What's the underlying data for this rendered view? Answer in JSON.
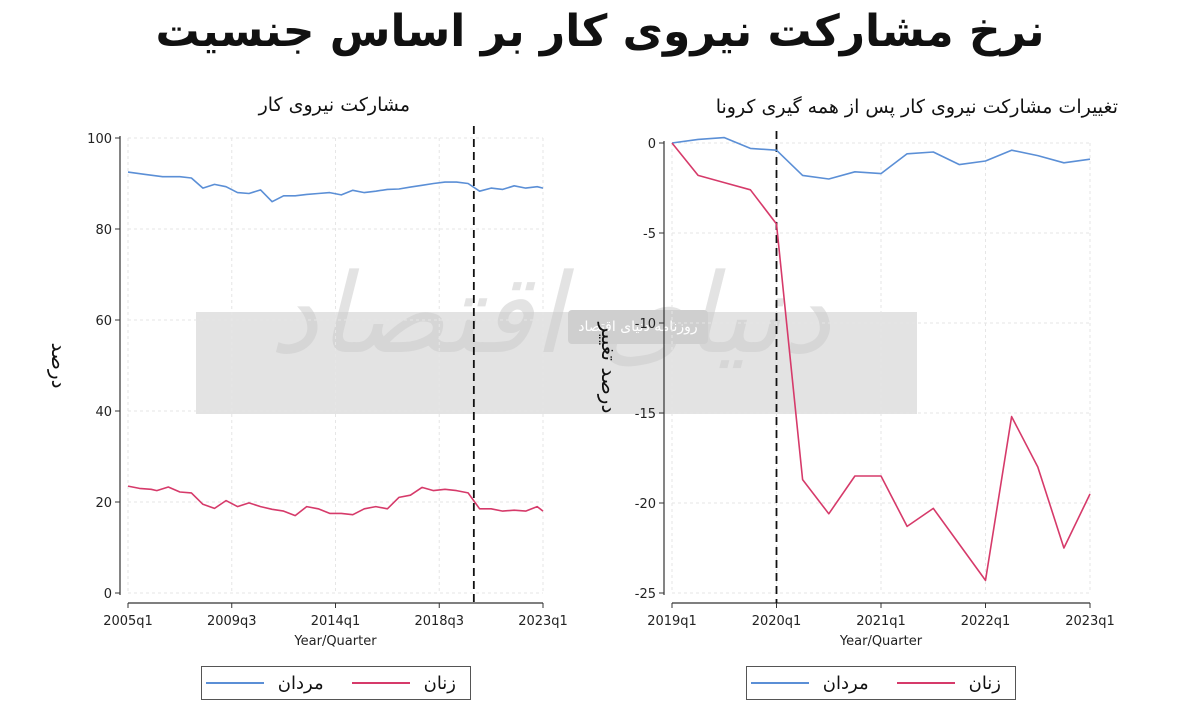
{
  "title": "نرخ مشارکت نیروی کار بر اساس جنسیت",
  "watermark": {
    "text": "دنیای اقتصاد",
    "badge": "روزنامه دنیای اقتصاد"
  },
  "colors": {
    "men": "#5b8fd6",
    "women": "#d63a6a",
    "grid": "#e6e6e6"
  },
  "legend": {
    "men_label": "مردان",
    "women_label": "زنان"
  },
  "chart_data": [
    {
      "type": "line",
      "title": "مشارکت نیروی کار",
      "xlabel": "Year/Quarter",
      "ylabel": "درصد",
      "ylim": [
        0,
        100
      ],
      "yticks": [
        0,
        20,
        40,
        60,
        80,
        100
      ],
      "x_range": [
        "2005q1",
        "2023q1"
      ],
      "xticks": [
        "2005q1",
        "2009q3",
        "2014q1",
        "2018q3",
        "2023q1"
      ],
      "vline_at": "2020q1",
      "series": [
        {
          "name": "مردان",
          "points": [
            [
              "2005q1",
              92.5
            ],
            [
              "2005q4",
              92.0
            ],
            [
              "2006q3",
              91.5
            ],
            [
              "2007q2",
              91.5
            ],
            [
              "2007q4",
              91.2
            ],
            [
              "2008q2",
              89.0
            ],
            [
              "2008q4",
              89.8
            ],
            [
              "2009q2",
              89.3
            ],
            [
              "2009q4",
              88.0
            ],
            [
              "2010q2",
              87.8
            ],
            [
              "2010q4",
              88.6
            ],
            [
              "2011q2",
              86.0
            ],
            [
              "2011q4",
              87.3
            ],
            [
              "2012q2",
              87.3
            ],
            [
              "2012q4",
              87.6
            ],
            [
              "2013q2",
              87.8
            ],
            [
              "2013q4",
              88.0
            ],
            [
              "2014q2",
              87.5
            ],
            [
              "2014q4",
              88.5
            ],
            [
              "2015q2",
              88.0
            ],
            [
              "2015q4",
              88.3
            ],
            [
              "2016q2",
              88.7
            ],
            [
              "2016q4",
              88.8
            ],
            [
              "2017q2",
              89.2
            ],
            [
              "2017q4",
              89.6
            ],
            [
              "2018q2",
              90.0
            ],
            [
              "2018q4",
              90.3
            ],
            [
              "2019q2",
              90.3
            ],
            [
              "2019q4",
              90.0
            ],
            [
              "2020q2",
              88.3
            ],
            [
              "2020q4",
              89.0
            ],
            [
              "2021q2",
              88.7
            ],
            [
              "2021q4",
              89.5
            ],
            [
              "2022q2",
              89.0
            ],
            [
              "2022q4",
              89.3
            ],
            [
              "2023q1",
              89.0
            ]
          ]
        },
        {
          "name": "زنان",
          "points": [
            [
              "2005q1",
              23.5
            ],
            [
              "2005q3",
              23.0
            ],
            [
              "2006q1",
              22.8
            ],
            [
              "2006q2",
              22.5
            ],
            [
              "2006q4",
              23.3
            ],
            [
              "2007q2",
              22.2
            ],
            [
              "2007q4",
              22.0
            ],
            [
              "2008q2",
              19.5
            ],
            [
              "2008q4",
              18.6
            ],
            [
              "2009q2",
              20.3
            ],
            [
              "2009q4",
              19.0
            ],
            [
              "2010q2",
              19.8
            ],
            [
              "2010q4",
              19.0
            ],
            [
              "2011q2",
              18.4
            ],
            [
              "2011q4",
              18.0
            ],
            [
              "2012q2",
              17.0
            ],
            [
              "2012q4",
              19.0
            ],
            [
              "2013q2",
              18.5
            ],
            [
              "2013q4",
              17.5
            ],
            [
              "2014q2",
              17.5
            ],
            [
              "2014q4",
              17.2
            ],
            [
              "2015q2",
              18.5
            ],
            [
              "2015q4",
              19.0
            ],
            [
              "2016q2",
              18.5
            ],
            [
              "2016q4",
              21.0
            ],
            [
              "2017q2",
              21.5
            ],
            [
              "2017q4",
              23.2
            ],
            [
              "2018q2",
              22.5
            ],
            [
              "2018q4",
              22.8
            ],
            [
              "2019q2",
              22.5
            ],
            [
              "2019q4",
              22.0
            ],
            [
              "2020q2",
              18.5
            ],
            [
              "2020q4",
              18.5
            ],
            [
              "2021q2",
              18.0
            ],
            [
              "2021q4",
              18.2
            ],
            [
              "2022q2",
              18.0
            ],
            [
              "2022q4",
              19.0
            ],
            [
              "2023q1",
              18.0
            ]
          ]
        }
      ]
    },
    {
      "type": "line",
      "title": "تغییرات مشارکت نیروی کار پس از همه گیری  کرونا",
      "xlabel": "Year/Quarter",
      "ylabel": "درصد تغییر",
      "ylim": [
        -25,
        0
      ],
      "yticks": [
        0,
        -5,
        -10,
        -15,
        -20,
        -25
      ],
      "x_range": [
        "2019q1",
        "2023q1"
      ],
      "xticks": [
        "2019q1",
        "2020q1",
        "2021q1",
        "2022q1",
        "2023q1"
      ],
      "vline_at": "2020q1",
      "series": [
        {
          "name": "مردان",
          "points": [
            [
              "2019q1",
              0.0
            ],
            [
              "2019q2",
              0.2
            ],
            [
              "2019q3",
              0.3
            ],
            [
              "2019q4",
              -0.3
            ],
            [
              "2020q1",
              -0.4
            ],
            [
              "2020q2",
              -1.8
            ],
            [
              "2020q3",
              -2.0
            ],
            [
              "2020q4",
              -1.6
            ],
            [
              "2021q1",
              -1.7
            ],
            [
              "2021q2",
              -0.6
            ],
            [
              "2021q3",
              -0.5
            ],
            [
              "2021q4",
              -1.2
            ],
            [
              "2022q1",
              -1.0
            ],
            [
              "2022q2",
              -0.4
            ],
            [
              "2022q3",
              -0.7
            ],
            [
              "2022q4",
              -1.1
            ],
            [
              "2023q1",
              -0.9
            ]
          ]
        },
        {
          "name": "زنان",
          "points": [
            [
              "2019q1",
              0.0
            ],
            [
              "2019q2",
              -1.8
            ],
            [
              "2019q3",
              -2.2
            ],
            [
              "2019q4",
              -2.6
            ],
            [
              "2020q1",
              -4.5
            ],
            [
              "2020q2",
              -18.7
            ],
            [
              "2020q3",
              -20.6
            ],
            [
              "2020q4",
              -18.5
            ],
            [
              "2021q1",
              -18.5
            ],
            [
              "2021q2",
              -21.3
            ],
            [
              "2021q3",
              -20.3
            ],
            [
              "2021q4",
              -22.3
            ],
            [
              "2022q1",
              -24.3
            ],
            [
              "2022q2",
              -15.2
            ],
            [
              "2022q3",
              -18.0
            ],
            [
              "2022q4",
              -22.5
            ],
            [
              "2023q1",
              -19.5
            ]
          ]
        }
      ]
    }
  ]
}
